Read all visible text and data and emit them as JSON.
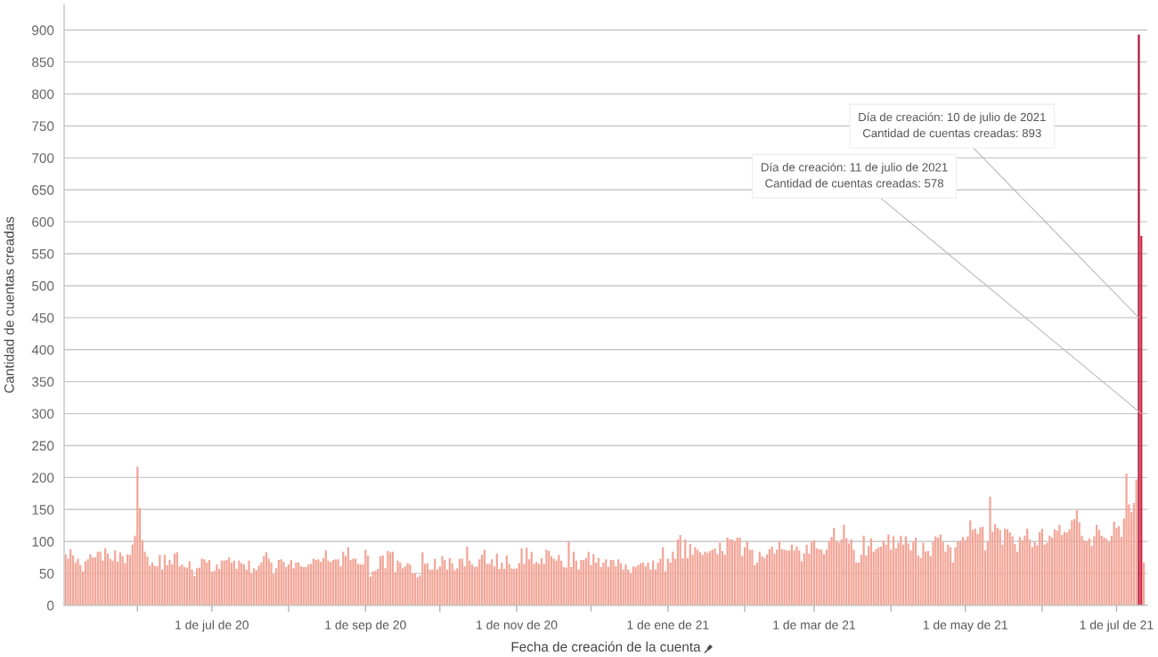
{
  "chart_data": {
    "type": "bar",
    "xlabel": "Fecha de creación de la cuenta",
    "ylabel": "Cantidad de cuentas creadas",
    "series": [
      {
        "color": "#f2a597",
        "x": [
          "2020-05-03",
          "2020-05-04",
          "2020-05-05",
          "2020-05-06",
          "2020-05-07",
          "2020-05-08",
          "2020-05-09",
          "2020-05-10",
          "2020-05-11",
          "2020-05-12",
          "2020-05-13",
          "2020-05-14",
          "2020-05-15",
          "2020-05-16",
          "2020-05-17",
          "2020-05-18",
          "2020-05-19",
          "2020-05-20",
          "2020-05-21",
          "2020-05-22",
          "2020-05-23",
          "2020-05-24",
          "2020-05-25",
          "2020-05-26",
          "2020-05-27",
          "2020-05-28",
          "2020-05-29",
          "2020-05-30",
          "2020-05-31",
          "2020-06-01",
          "2020-06-02",
          "2020-06-03",
          "2020-06-04",
          "2020-06-05",
          "2020-06-06",
          "2020-06-07",
          "2020-06-08",
          "2020-06-09",
          "2020-06-10",
          "2020-06-11",
          "2020-06-12",
          "2020-06-13",
          "2020-06-14",
          "2020-06-15",
          "2020-06-16",
          "2020-06-17",
          "2020-06-18",
          "2020-06-19",
          "2020-06-20",
          "2020-06-21",
          "2020-06-22",
          "2020-06-23",
          "2020-06-24",
          "2020-06-25",
          "2020-06-26",
          "2020-06-27",
          "2020-06-28",
          "2020-06-29",
          "2020-06-30",
          "2020-07-01",
          "2020-07-02",
          "2020-07-03",
          "2020-07-04",
          "2020-07-05",
          "2020-07-06",
          "2020-07-07",
          "2020-07-08",
          "2020-07-09",
          "2020-07-10",
          "2020-07-11",
          "2020-07-12",
          "2020-07-13",
          "2020-07-14",
          "2020-07-15",
          "2020-07-16",
          "2020-07-17",
          "2020-07-18",
          "2020-07-19",
          "2020-07-20",
          "2020-07-21",
          "2020-07-22",
          "2020-07-23",
          "2020-07-24",
          "2020-07-25",
          "2020-07-26",
          "2020-07-27",
          "2020-07-28",
          "2020-07-29",
          "2020-07-30",
          "2020-07-31",
          "2020-08-01",
          "2020-08-02",
          "2020-08-03",
          "2020-08-04",
          "2020-08-05",
          "2020-08-06",
          "2020-08-07",
          "2020-08-08",
          "2020-08-09",
          "2020-08-10",
          "2020-08-11",
          "2020-08-12",
          "2020-08-13",
          "2020-08-14",
          "2020-08-15",
          "2020-08-16",
          "2020-08-17",
          "2020-08-18",
          "2020-08-19",
          "2020-08-20",
          "2020-08-21",
          "2020-08-22",
          "2020-08-23",
          "2020-08-24",
          "2020-08-25",
          "2020-08-26",
          "2020-08-27",
          "2020-08-28",
          "2020-08-29",
          "2020-08-30",
          "2020-08-31",
          "2020-09-01",
          "2020-09-02",
          "2020-09-03",
          "2020-09-04",
          "2020-09-05",
          "2020-09-06",
          "2020-09-07",
          "2020-09-08",
          "2020-09-09",
          "2020-09-10",
          "2020-09-11",
          "2020-09-12",
          "2020-09-13",
          "2020-09-14",
          "2020-09-15",
          "2020-09-16",
          "2020-09-17",
          "2020-09-18",
          "2020-09-19",
          "2020-09-20",
          "2020-09-21",
          "2020-09-22",
          "2020-09-23",
          "2020-09-24",
          "2020-09-25",
          "2020-09-26",
          "2020-09-27",
          "2020-09-28",
          "2020-09-29",
          "2020-09-30",
          "2020-10-01",
          "2020-10-02",
          "2020-10-03",
          "2020-10-04",
          "2020-10-05",
          "2020-10-06",
          "2020-10-07",
          "2020-10-08",
          "2020-10-09",
          "2020-10-10",
          "2020-10-11",
          "2020-10-12",
          "2020-10-13",
          "2020-10-14",
          "2020-10-15",
          "2020-10-16",
          "2020-10-17",
          "2020-10-18",
          "2020-10-19",
          "2020-10-20",
          "2020-10-21",
          "2020-10-22",
          "2020-10-23",
          "2020-10-24",
          "2020-10-25",
          "2020-10-26",
          "2020-10-27",
          "2020-10-28",
          "2020-10-29",
          "2020-10-30",
          "2020-10-31",
          "2020-11-01",
          "2020-11-02",
          "2020-11-03",
          "2020-11-04",
          "2020-11-05",
          "2020-11-06",
          "2020-11-07",
          "2020-11-08",
          "2020-11-09",
          "2020-11-10",
          "2020-11-11",
          "2020-11-12",
          "2020-11-13",
          "2020-11-14",
          "2020-11-15",
          "2020-11-16",
          "2020-11-17",
          "2020-11-18",
          "2020-11-19",
          "2020-11-20",
          "2020-11-21",
          "2020-11-22",
          "2020-11-23",
          "2020-11-24",
          "2020-11-25",
          "2020-11-26",
          "2020-11-27",
          "2020-11-28",
          "2020-11-29",
          "2020-11-30",
          "2020-12-01",
          "2020-12-02",
          "2020-12-03",
          "2020-12-04",
          "2020-12-05",
          "2020-12-06",
          "2020-12-07",
          "2020-12-08",
          "2020-12-09",
          "2020-12-10",
          "2020-12-11",
          "2020-12-12",
          "2020-12-13",
          "2020-12-14",
          "2020-12-15",
          "2020-12-16",
          "2020-12-17",
          "2020-12-18",
          "2020-12-19",
          "2020-12-20",
          "2020-12-21",
          "2020-12-22",
          "2020-12-23",
          "2020-12-24",
          "2020-12-25",
          "2020-12-26",
          "2020-12-27",
          "2020-12-28",
          "2020-12-29",
          "2020-12-30",
          "2020-12-31",
          "2021-01-01",
          "2021-01-02",
          "2021-01-03",
          "2021-01-04",
          "2021-01-05",
          "2021-01-06",
          "2021-01-07",
          "2021-01-08",
          "2021-01-09",
          "2021-01-10",
          "2021-01-11",
          "2021-01-12",
          "2021-01-13",
          "2021-01-14",
          "2021-01-15",
          "2021-01-16",
          "2021-01-17",
          "2021-01-18",
          "2021-01-19",
          "2021-01-20",
          "2021-01-21",
          "2021-01-22",
          "2021-01-23",
          "2021-01-24",
          "2021-01-25",
          "2021-01-26",
          "2021-01-27",
          "2021-01-28",
          "2021-01-29",
          "2021-01-30",
          "2021-01-31",
          "2021-02-01",
          "2021-02-02",
          "2021-02-03",
          "2021-02-04",
          "2021-02-05",
          "2021-02-06",
          "2021-02-07",
          "2021-02-08",
          "2021-02-09",
          "2021-02-10",
          "2021-02-11",
          "2021-02-12",
          "2021-02-13",
          "2021-02-14",
          "2021-02-15",
          "2021-02-16",
          "2021-02-17",
          "2021-02-18",
          "2021-02-19",
          "2021-02-20",
          "2021-02-21",
          "2021-02-22",
          "2021-02-23",
          "2021-02-24",
          "2021-02-25",
          "2021-02-26",
          "2021-02-27",
          "2021-02-28",
          "2021-03-01",
          "2021-03-02",
          "2021-03-03",
          "2021-03-04",
          "2021-03-05",
          "2021-03-06",
          "2021-03-07",
          "2021-03-08",
          "2021-03-09",
          "2021-03-10",
          "2021-03-11",
          "2021-03-12",
          "2021-03-13",
          "2021-03-14",
          "2021-03-15",
          "2021-03-16",
          "2021-03-17",
          "2021-03-18",
          "2021-03-19",
          "2021-03-20",
          "2021-03-21",
          "2021-03-22",
          "2021-03-23",
          "2021-03-24",
          "2021-03-25",
          "2021-03-26",
          "2021-03-27",
          "2021-03-28",
          "2021-03-29",
          "2021-03-30",
          "2021-03-31",
          "2021-04-01",
          "2021-04-02",
          "2021-04-03",
          "2021-04-04",
          "2021-04-05",
          "2021-04-06",
          "2021-04-07",
          "2021-04-08",
          "2021-04-09",
          "2021-04-10",
          "2021-04-11",
          "2021-04-12",
          "2021-04-13",
          "2021-04-14",
          "2021-04-15",
          "2021-04-16",
          "2021-04-17",
          "2021-04-18",
          "2021-04-19",
          "2021-04-20",
          "2021-04-21",
          "2021-04-22",
          "2021-04-23",
          "2021-04-24",
          "2021-04-25",
          "2021-04-26",
          "2021-04-27",
          "2021-04-28",
          "2021-04-29",
          "2021-04-30",
          "2021-05-01",
          "2021-05-02",
          "2021-05-03",
          "2021-05-04",
          "2021-05-05",
          "2021-05-06",
          "2021-05-07",
          "2021-05-08",
          "2021-05-09",
          "2021-05-10",
          "2021-05-11",
          "2021-05-12",
          "2021-05-13",
          "2021-05-14",
          "2021-05-15",
          "2021-05-16",
          "2021-05-17",
          "2021-05-18",
          "2021-05-19",
          "2021-05-20",
          "2021-05-21",
          "2021-05-22",
          "2021-05-23",
          "2021-05-24",
          "2021-05-25",
          "2021-05-26",
          "2021-05-27",
          "2021-05-28",
          "2021-05-29",
          "2021-05-30",
          "2021-05-31",
          "2021-06-01",
          "2021-06-02",
          "2021-06-03",
          "2021-06-04",
          "2021-06-05",
          "2021-06-06",
          "2021-06-07",
          "2021-06-08",
          "2021-06-09",
          "2021-06-10",
          "2021-06-11",
          "2021-06-12",
          "2021-06-13",
          "2021-06-14",
          "2021-06-15",
          "2021-06-16",
          "2021-06-17",
          "2021-06-18",
          "2021-06-19",
          "2021-06-20",
          "2021-06-21",
          "2021-06-22",
          "2021-06-23",
          "2021-06-24",
          "2021-06-25",
          "2021-06-26",
          "2021-06-27",
          "2021-06-28",
          "2021-06-29",
          "2021-06-30",
          "2021-07-01",
          "2021-07-02",
          "2021-07-03",
          "2021-07-04",
          "2021-07-05",
          "2021-07-06",
          "2021-07-07",
          "2021-07-08",
          "2021-07-09",
          "2021-07-12"
        ],
        "values": [
          80,
          73,
          88,
          78,
          67,
          73,
          63,
          53,
          69,
          72,
          80,
          75,
          75,
          84,
          84,
          70,
          89,
          81,
          73,
          70,
          86,
          68,
          83,
          77,
          66,
          80,
          79,
          95,
          109,
          217,
          152,
          102,
          84,
          76,
          62,
          67,
          62,
          61,
          79,
          56,
          79,
          63,
          71,
          64,
          81,
          83,
          61,
          64,
          60,
          59,
          69,
          56,
          46,
          58,
          59,
          73,
          72,
          67,
          71,
          53,
          54,
          64,
          57,
          70,
          70,
          71,
          75,
          67,
          70,
          57,
          70,
          66,
          64,
          56,
          70,
          50,
          58,
          55,
          62,
          67,
          77,
          83,
          73,
          67,
          49,
          58,
          71,
          72,
          68,
          60,
          64,
          71,
          58,
          67,
          67,
          61,
          60,
          60,
          64,
          65,
          73,
          71,
          72,
          68,
          74,
          86,
          70,
          68,
          71,
          72,
          72,
          61,
          84,
          77,
          91,
          71,
          73,
          73,
          65,
          64,
          64,
          87,
          78,
          45,
          53,
          54,
          57,
          77,
          78,
          58,
          85,
          83,
          84,
          52,
          70,
          67,
          58,
          61,
          66,
          64,
          50,
          50,
          44,
          47,
          83,
          65,
          66,
          56,
          56,
          73,
          56,
          61,
          77,
          71,
          56,
          74,
          66,
          55,
          58,
          73,
          73,
          61,
          92,
          70,
          64,
          60,
          61,
          72,
          79,
          87,
          65,
          65,
          72,
          61,
          81,
          57,
          67,
          57,
          78,
          65,
          58,
          57,
          58,
          66,
          89,
          65,
          90,
          72,
          84,
          65,
          68,
          65,
          74,
          65,
          87,
          85,
          77,
          73,
          70,
          79,
          70,
          60,
          59,
          100,
          60,
          84,
          70,
          56,
          71,
          71,
          74,
          84,
          63,
          80,
          67,
          74,
          60,
          67,
          72,
          60,
          71,
          71,
          61,
          72,
          66,
          56,
          64,
          56,
          50,
          61,
          60,
          63,
          66,
          67,
          61,
          67,
          56,
          70,
          56,
          67,
          73,
          91,
          53,
          73,
          67,
          84,
          73,
          103,
          110,
          74,
          103,
          74,
          96,
          79,
          91,
          87,
          83,
          79,
          84,
          82,
          85,
          87,
          89,
          80,
          98,
          85,
          79,
          106,
          103,
          103,
          100,
          106,
          106,
          77,
          91,
          100,
          87,
          87,
          63,
          67,
          84,
          77,
          74,
          80,
          88,
          92,
          81,
          87,
          100,
          88,
          87,
          86,
          86,
          95,
          86,
          92,
          86,
          69,
          81,
          95,
          81,
          100,
          102,
          89,
          88,
          87,
          80,
          87,
          100,
          107,
          121,
          101,
          98,
          103,
          126,
          105,
          97,
          103,
          87,
          67,
          67,
          79,
          109,
          78,
          93,
          105,
          84,
          88,
          91,
          92,
          101,
          95,
          111,
          87,
          108,
          89,
          98,
          109,
          95,
          108,
          97,
          86,
          99,
          106,
          78,
          74,
          98,
          84,
          85,
          77,
          99,
          108,
          106,
          111,
          99,
          84,
          95,
          91,
          67,
          91,
          100,
          101,
          107,
          102,
          108,
          133,
          118,
          120,
          112,
          122,
          123,
          86,
          100,
          170,
          115,
          127,
          121,
          118,
          95,
          120,
          119,
          114,
          108,
          96,
          84,
          107,
          102,
          109,
          120,
          103,
          91,
          99,
          94,
          115,
          120,
          95,
          98,
          109,
          106,
          119,
          117,
          126,
          110,
          115,
          114,
          119,
          133,
          135,
          149,
          130,
          109,
          102,
          100,
          105,
          93,
          108,
          126,
          118,
          109,
          106,
          104,
          99,
          109,
          131,
          121,
          124,
          107,
          136,
          206,
          158,
          146,
          160,
          197,
          67
        ]
      },
      {
        "colors": [
          "#b5173d",
          "#d41f3a"
        ],
        "x": [
          "2021-07-10",
          "2021-07-11"
        ],
        "values": [
          893,
          578
        ]
      }
    ],
    "xlim": [
      "2020-05-02T10:00",
      "2021-07-13T10:00"
    ],
    "ylim": [
      0,
      940
    ],
    "xticks": [
      {
        "value": "2020-06-01",
        "label": null
      },
      {
        "value": "2020-07-01",
        "label": "1 de jul de 20"
      },
      {
        "value": "2020-08-01",
        "label": null
      },
      {
        "value": "2020-09-01",
        "label": "1 de sep de 20"
      },
      {
        "value": "2020-10-01",
        "label": null
      },
      {
        "value": "2020-11-01",
        "label": "1 de nov de 20"
      },
      {
        "value": "2020-12-01",
        "label": null
      },
      {
        "value": "2021-01-01",
        "label": "1 de ene de 21"
      },
      {
        "value": "2021-02-01",
        "label": null
      },
      {
        "value": "2021-03-01",
        "label": "1 de mar de 21"
      },
      {
        "value": "2021-04-01",
        "label": null
      },
      {
        "value": "2021-05-01",
        "label": "1 de may de 21"
      },
      {
        "value": "2021-06-01",
        "label": null
      },
      {
        "value": "2021-07-01",
        "label": "1 de jul de 21"
      }
    ],
    "yticks": [
      0,
      50,
      100,
      150,
      200,
      250,
      300,
      350,
      400,
      450,
      500,
      550,
      600,
      650,
      700,
      750,
      800,
      850,
      900
    ],
    "grid": "y",
    "annotations": [
      {
        "text": "Día de creación: 10 de julio de 2021\nCantidad de cuentas creadas: 893",
        "x": "2021-07-10",
        "y": 450
      },
      {
        "text": "Día de creación: 11 de julio de 2021\nCantidad de cuentas creadas: 578",
        "x": "2021-07-11",
        "y": 300
      }
    ]
  }
}
